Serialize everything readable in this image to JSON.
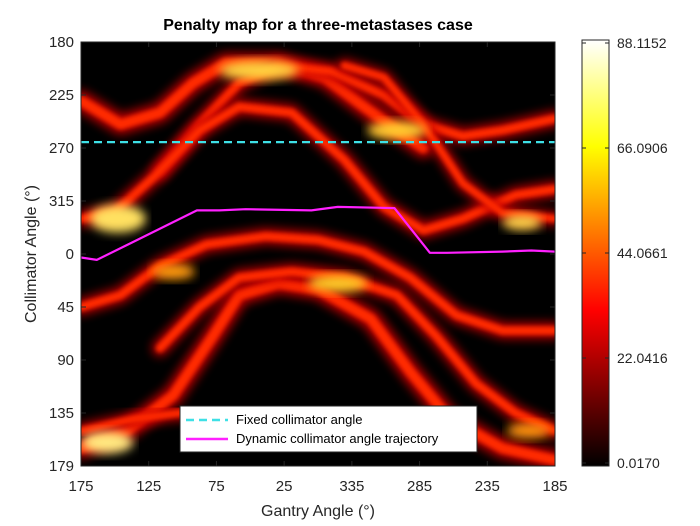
{
  "chart_data": {
    "type": "heatmap",
    "title": "Penalty map for a three-metastases case",
    "xlabel": "Gantry Angle (°)",
    "ylabel": "Collimator Angle (°)",
    "x_tick_labels": [
      "175",
      "125",
      "75",
      "25",
      "335",
      "285",
      "235",
      "185"
    ],
    "y_tick_labels": [
      "180",
      "225",
      "270",
      "315",
      "0",
      "45",
      "90",
      "135",
      "179"
    ],
    "colorbar": {
      "colormap": "hot",
      "min": 0.017,
      "max": 88.1152,
      "tick_labels": [
        "88.1152",
        "66.0906",
        "44.0661",
        "22.0416",
        "0.0170"
      ]
    },
    "series": [
      {
        "name": "Fixed collimator angle",
        "color": "#3ee0e6",
        "style": "dashed",
        "x_index": [
          0,
          360
        ],
        "y_index": [
          85,
          85
        ]
      },
      {
        "name": "Dynamic collimator angle trajectory",
        "color": "#ff20ff",
        "style": "solid",
        "x_index": [
          0,
          12,
          88,
          105,
          125,
          175,
          195,
          238,
          265,
          278,
          320,
          342,
          360
        ],
        "y_index": [
          183,
          185,
          143,
          143,
          142,
          143,
          140,
          141,
          179,
          179,
          178,
          177,
          178
        ]
      }
    ],
    "legend_position": "bottom-center"
  }
}
